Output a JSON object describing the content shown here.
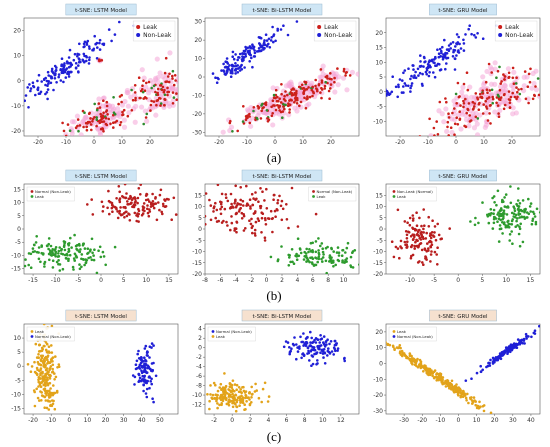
{
  "row_labels": [
    "(a)",
    "(b)",
    "(c)"
  ],
  "chart_data": [
    {
      "id": "a1",
      "type": "scatter",
      "row": "(a)",
      "title": "t-SNE: LSTM Model",
      "xlim": [
        -25,
        30
      ],
      "ylim": [
        -22,
        25
      ],
      "xticks": [
        -20,
        -10,
        0,
        10,
        20
      ],
      "yticks": [
        -20,
        -10,
        0,
        10,
        20
      ],
      "legend": {
        "placement": "top-right"
      },
      "title_box": "#cfe6f5",
      "series": [
        {
          "name": "Leak",
          "color": "#cc1f1a",
          "halo": "#f4a6d7",
          "clusters": [
            {
              "center": [
                2,
                -15
              ],
              "spread": [
                6,
                3
              ],
              "n": 90,
              "angle": 30
            },
            {
              "center": [
                23,
                -5
              ],
              "spread": [
                5,
                4
              ],
              "n": 80,
              "angle": 40
            },
            {
              "center": [
                2,
                8
              ],
              "spread": [
                0.6,
                0.6
              ],
              "n": 4,
              "angle": 0
            }
          ],
          "mix": {
            "color": "#2e8b2e",
            "fraction": 0.12
          }
        },
        {
          "name": "Non-Leak",
          "color": "#1f1fd6",
          "clusters": [
            {
              "center": [
                -10,
                5
              ],
              "spread": [
                10,
                2
              ],
              "n": 160,
              "angle": 40
            }
          ]
        }
      ]
    },
    {
      "id": "a2",
      "type": "scatter",
      "row": "(a)",
      "title": "t-SNE: Bi-LSTM Model",
      "xlim": [
        -25,
        30
      ],
      "ylim": [
        -32,
        32
      ],
      "xticks": [
        -20,
        -10,
        0,
        10,
        20
      ],
      "yticks": [
        -30,
        -20,
        -10,
        0,
        10,
        20,
        30
      ],
      "legend": {
        "placement": "top-right"
      },
      "title_box": "#cfe6f5",
      "series": [
        {
          "name": "Leak",
          "color": "#cc1f1a",
          "halo": "#f4a6d7",
          "clusters": [
            {
              "center": [
                6,
                -12
              ],
              "spread": [
                12,
                3
              ],
              "n": 180,
              "angle": 38
            }
          ],
          "mix": {
            "color": "#2e8b2e",
            "fraction": 0.1
          }
        },
        {
          "name": "Non-Leak",
          "color": "#1f1fd6",
          "clusters": [
            {
              "center": [
                -10,
                12
              ],
              "spread": [
                9,
                2
              ],
              "n": 150,
              "angle": 50
            }
          ]
        }
      ]
    },
    {
      "id": "a3",
      "type": "scatter",
      "row": "(a)",
      "title": "t-SNE: GRU Model",
      "xlim": [
        -25,
        30
      ],
      "ylim": [
        -15,
        25
      ],
      "xticks": [
        -20,
        -10,
        0,
        10,
        20
      ],
      "yticks": [
        -10,
        -5,
        0,
        5,
        10,
        15,
        20
      ],
      "legend": {
        "placement": "top-right"
      },
      "title_box": "#cfe6f5",
      "series": [
        {
          "name": "Leak",
          "color": "#cc1f1a",
          "halo": "#f4a6d7",
          "clusters": [
            {
              "center": [
                12,
                -2
              ],
              "spread": [
                10,
                4
              ],
              "n": 160,
              "angle": 25
            }
          ],
          "mix": {
            "color": "#2e8b2e",
            "fraction": 0.1
          }
        },
        {
          "name": "Non-Leak",
          "color": "#1f1fd6",
          "clusters": [
            {
              "center": [
                -8,
                10
              ],
              "spread": [
                10,
                2
              ],
              "n": 150,
              "angle": 35
            }
          ]
        }
      ]
    },
    {
      "id": "b1",
      "type": "scatter",
      "row": "(b)",
      "title": "t-SNE: LSTM Model",
      "xlim": [
        -17,
        17
      ],
      "ylim": [
        -17,
        17
      ],
      "xticks": [
        -15,
        -10,
        -5,
        0,
        5,
        10,
        15
      ],
      "yticks": [
        -15,
        -10,
        -5,
        0,
        5,
        10,
        15
      ],
      "legend": {
        "placement": "top-left"
      },
      "title_box": "#cfe6f5",
      "series": [
        {
          "name": "Normal (Non-Leak)",
          "color": "#b81e1e",
          "clusters": [
            {
              "center": [
                8,
                9
              ],
              "spread": [
                4,
                3
              ],
              "n": 140,
              "angle": 0
            }
          ]
        },
        {
          "name": "Leak",
          "color": "#2e9b2e",
          "clusters": [
            {
              "center": [
                -9,
                -9
              ],
              "spread": [
                5,
                3
              ],
              "n": 150,
              "angle": 0
            }
          ]
        }
      ]
    },
    {
      "id": "b2",
      "type": "scatter",
      "row": "(b)",
      "title": "t-SNE: Bi-LSTM Model",
      "xlim": [
        -8,
        12
      ],
      "ylim": [
        -20,
        20
      ],
      "xticks": [
        -8,
        -6,
        -4,
        -2,
        0,
        2,
        4,
        6,
        8,
        10
      ],
      "yticks": [
        -20,
        -15,
        -10,
        -5,
        0,
        5,
        10,
        15
      ],
      "legend": {
        "placement": "top-right"
      },
      "title_box": "#cfe6f5",
      "series": [
        {
          "name": "Normal (Non-Leak)",
          "color": "#b81e1e",
          "clusters": [
            {
              "center": [
                -3,
                8
              ],
              "spread": [
                3.5,
                5
              ],
              "n": 160,
              "angle": 0
            }
          ]
        },
        {
          "name": "Leak",
          "color": "#2e9b2e",
          "clusters": [
            {
              "center": [
                7,
                -12
              ],
              "spread": [
                2.5,
                3
              ],
              "n": 120,
              "angle": 0
            }
          ]
        }
      ]
    },
    {
      "id": "b3",
      "type": "scatter",
      "row": "(b)",
      "title": "t-SNE: GRU Model",
      "xlim": [
        -15,
        17
      ],
      "ylim": [
        -20,
        20
      ],
      "xticks": [
        -10,
        -5,
        0,
        5,
        10,
        15
      ],
      "yticks": [
        -20,
        -15,
        -10,
        -5,
        0,
        5,
        10,
        15
      ],
      "legend": {
        "placement": "top-left"
      },
      "title_box": "#cfe6f5",
      "series": [
        {
          "name": "Non-Leak (Normal)",
          "color": "#b81e1e",
          "clusters": [
            {
              "center": [
                -8,
                -5
              ],
              "spread": [
                2.5,
                6
              ],
              "n": 130,
              "angle": 0
            }
          ]
        },
        {
          "name": "Leak",
          "color": "#2e9b2e",
          "clusters": [
            {
              "center": [
                11,
                7
              ],
              "spread": [
                3,
                5
              ],
              "n": 150,
              "angle": 0
            }
          ]
        }
      ]
    },
    {
      "id": "c1",
      "type": "scatter",
      "row": "(c)",
      "title": "t-SNE: LSTM Model",
      "xlim": [
        -25,
        60
      ],
      "ylim": [
        -17,
        15
      ],
      "xticks": [
        -20,
        -10,
        0,
        10,
        20,
        30,
        40,
        50
      ],
      "yticks": [
        -15,
        -10,
        -5,
        0,
        5,
        10
      ],
      "legend": {
        "placement": "top-left"
      },
      "title_box": "#f6e1cf",
      "series": [
        {
          "name": "Leak",
          "color": "#e2a31a",
          "clusters": [
            {
              "center": [
                -13,
                -2
              ],
              "spread": [
                3,
                7
              ],
              "n": 220,
              "angle": 0
            }
          ]
        },
        {
          "name": "Normal (Non-Leak)",
          "color": "#1f1fd6",
          "clusters": [
            {
              "center": [
                41,
                -1
              ],
              "spread": [
                2.5,
                4
              ],
              "n": 110,
              "angle": 0
            }
          ]
        }
      ]
    },
    {
      "id": "c2",
      "type": "scatter",
      "row": "(c)",
      "title": "t-SNE: Bi-LSTM Model",
      "xlim": [
        -3,
        14
      ],
      "ylim": [
        -14,
        5
      ],
      "xticks": [
        -2,
        0,
        2,
        4,
        6,
        8,
        10,
        12
      ],
      "yticks": [
        -12,
        -10,
        -8,
        -6,
        -4,
        -2,
        0,
        2,
        4
      ],
      "legend": {
        "placement": "top-left"
      },
      "title_box": "#f6e1cf",
      "series": [
        {
          "name": "Normal (Non-Leak)",
          "color": "#1f1fd6",
          "clusters": [
            {
              "center": [
                9,
                0
              ],
              "spread": [
                1.5,
                1.5
              ],
              "n": 130,
              "angle": 0
            }
          ]
        },
        {
          "name": "Leak",
          "color": "#e2a31a",
          "clusters": [
            {
              "center": [
                0,
                -10
              ],
              "spread": [
                1.6,
                1.3
              ],
              "n": 170,
              "angle": 0
            }
          ]
        }
      ]
    },
    {
      "id": "c3",
      "type": "scatter",
      "row": "(c)",
      "title": "t-SNE: GRU Model",
      "xlim": [
        -40,
        45
      ],
      "ylim": [
        -32,
        25
      ],
      "xticks": [
        -30,
        -20,
        -10,
        0,
        10,
        20,
        30,
        40
      ],
      "yticks": [
        -30,
        -20,
        -10,
        0,
        10,
        20
      ],
      "legend": {
        "placement": "top-left"
      },
      "title_box": "#f6e1cf",
      "series": [
        {
          "name": "Leak",
          "color": "#e2a31a",
          "clusters": [
            {
              "center": [
                -12,
                -8
              ],
              "spread": [
                18,
                1.2
              ],
              "n": 260,
              "angle": -38
            }
          ]
        },
        {
          "name": "Normal (Non-Leak)",
          "color": "#1f1fd6",
          "clusters": [
            {
              "center": [
                27,
                8
              ],
              "spread": [
                10,
                0.8
              ],
              "n": 150,
              "angle": 40
            }
          ]
        }
      ]
    }
  ]
}
